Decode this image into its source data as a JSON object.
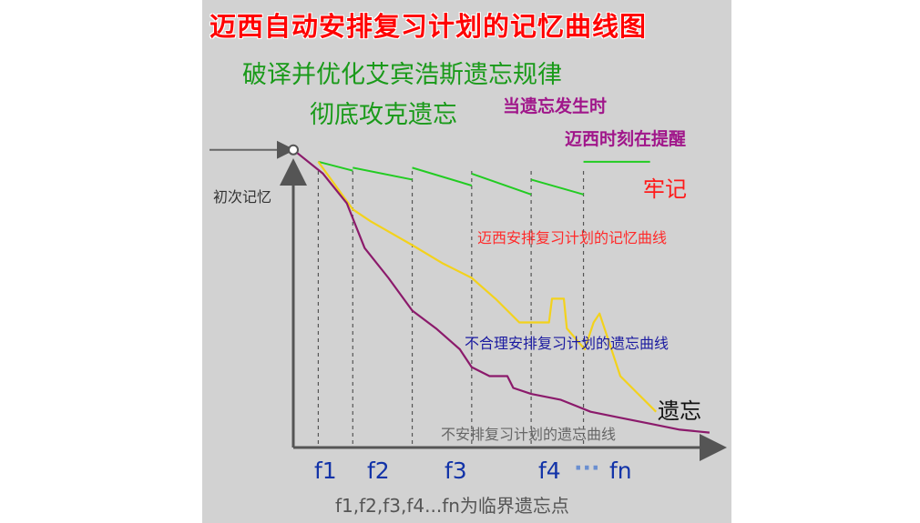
{
  "chart_data": {
    "type": "line",
    "title": "迈西自动安排复习计划的记忆曲线图",
    "subtitle_lines": [
      "破译并优化艾宾浩斯遗忘规律",
      "彻底攻克遗忘"
    ],
    "annotations": [
      "当遗忘发生时",
      "迈西时刻在提醒"
    ],
    "ylabel": "初次记忆",
    "x_ticks": [
      "f1",
      "f2",
      "f3",
      "f4",
      "···",
      "fn"
    ],
    "xlabel": "f1,f2,f3,f4...fn为临界遗忘点",
    "series": [
      {
        "name": "迈西安排复习计划的记忆曲线",
        "end_label": "牢记",
        "color": "#22cc22",
        "segments": [
          {
            "x": [
              0.42,
              1.0
            ],
            "y": [
              96,
              93
            ]
          },
          {
            "x": [
              1.0,
              2.0
            ],
            "y": [
              94,
              90
            ]
          },
          {
            "x": [
              2.0,
              3.0
            ],
            "y": [
              94,
              88
            ]
          },
          {
            "x": [
              3.0,
              4.0
            ],
            "y": [
              92,
              85
            ]
          },
          {
            "x": [
              4.0,
              4.88
            ],
            "y": [
              90,
              85
            ]
          },
          {
            "x": [
              4.88,
              6.0
            ],
            "y": [
              96,
              96
            ]
          }
        ]
      },
      {
        "name": "不合理安排复习计划的遗忘曲线",
        "color": "#f3d21c",
        "points": [
          [
            0.42,
            96
          ],
          [
            1.0,
            80
          ],
          [
            1.3,
            76
          ],
          [
            2.0,
            68
          ],
          [
            2.5,
            62
          ],
          [
            3.0,
            57
          ],
          [
            3.4,
            50
          ],
          [
            3.8,
            42
          ],
          [
            4.3,
            42
          ],
          [
            4.35,
            50
          ],
          [
            4.55,
            50
          ],
          [
            4.6,
            40
          ],
          [
            4.9,
            33
          ],
          [
            5.05,
            42
          ],
          [
            5.15,
            45
          ],
          [
            5.3,
            36
          ],
          [
            5.5,
            24
          ],
          [
            5.8,
            18
          ],
          [
            6.1,
            12
          ]
        ]
      },
      {
        "name": "不安排复习计划的遗忘曲线",
        "end_label": "遗忘",
        "color": "#8b1a6b",
        "points": [
          [
            0,
            100
          ],
          [
            0.5,
            92
          ],
          [
            0.9,
            82
          ],
          [
            1.2,
            67
          ],
          [
            1.6,
            57
          ],
          [
            2.0,
            46
          ],
          [
            2.4,
            40
          ],
          [
            2.8,
            33
          ],
          [
            3.0,
            27
          ],
          [
            3.3,
            24
          ],
          [
            3.6,
            24
          ],
          [
            3.7,
            20
          ],
          [
            4.0,
            18
          ],
          [
            4.5,
            16
          ],
          [
            5.0,
            12
          ],
          [
            5.5,
            10
          ],
          [
            6.0,
            8
          ],
          [
            6.5,
            6
          ],
          [
            7.0,
            5
          ]
        ]
      }
    ],
    "xlim": [
      0,
      7.2
    ],
    "ylim": [
      0,
      110
    ],
    "grid": false,
    "x_axis_values": "unlabeled; f-ticks at x = 0.42, 1.0, 2.0, 3.0, 4.0, 4.88"
  }
}
